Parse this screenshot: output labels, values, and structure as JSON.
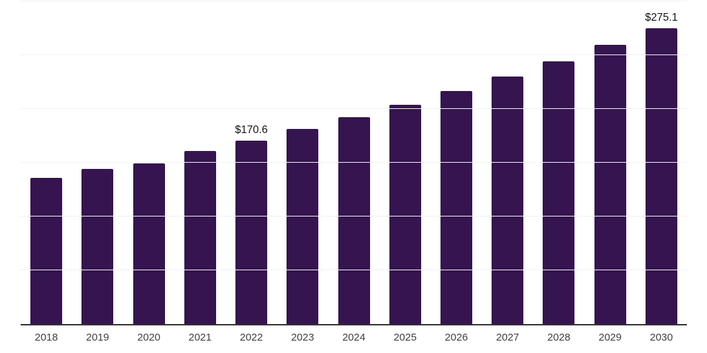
{
  "chart_data": {
    "type": "bar",
    "title": "",
    "xlabel": "",
    "ylabel": "",
    "categories": [
      "2018",
      "2019",
      "2020",
      "2021",
      "2022",
      "2023",
      "2024",
      "2025",
      "2026",
      "2027",
      "2028",
      "2029",
      "2030"
    ],
    "values": [
      135.9,
      144.2,
      149.4,
      160.9,
      170.6,
      181.2,
      192.3,
      204.0,
      216.5,
      230.0,
      244.2,
      259.4,
      275.1
    ],
    "data_labels": {
      "2022": "$170.6",
      "2030": "$275.1"
    },
    "value_prefix": "$",
    "ylim": [
      0,
      300
    ],
    "grid_step": 50,
    "grid": "horizontal-only",
    "legend": "none",
    "colors": {
      "bar": "#351450",
      "gridline": "#f1f1f3",
      "axis_line": "#333333",
      "tick_label": "#404040",
      "value_label": "#141414",
      "background": "#ffffff"
    }
  }
}
